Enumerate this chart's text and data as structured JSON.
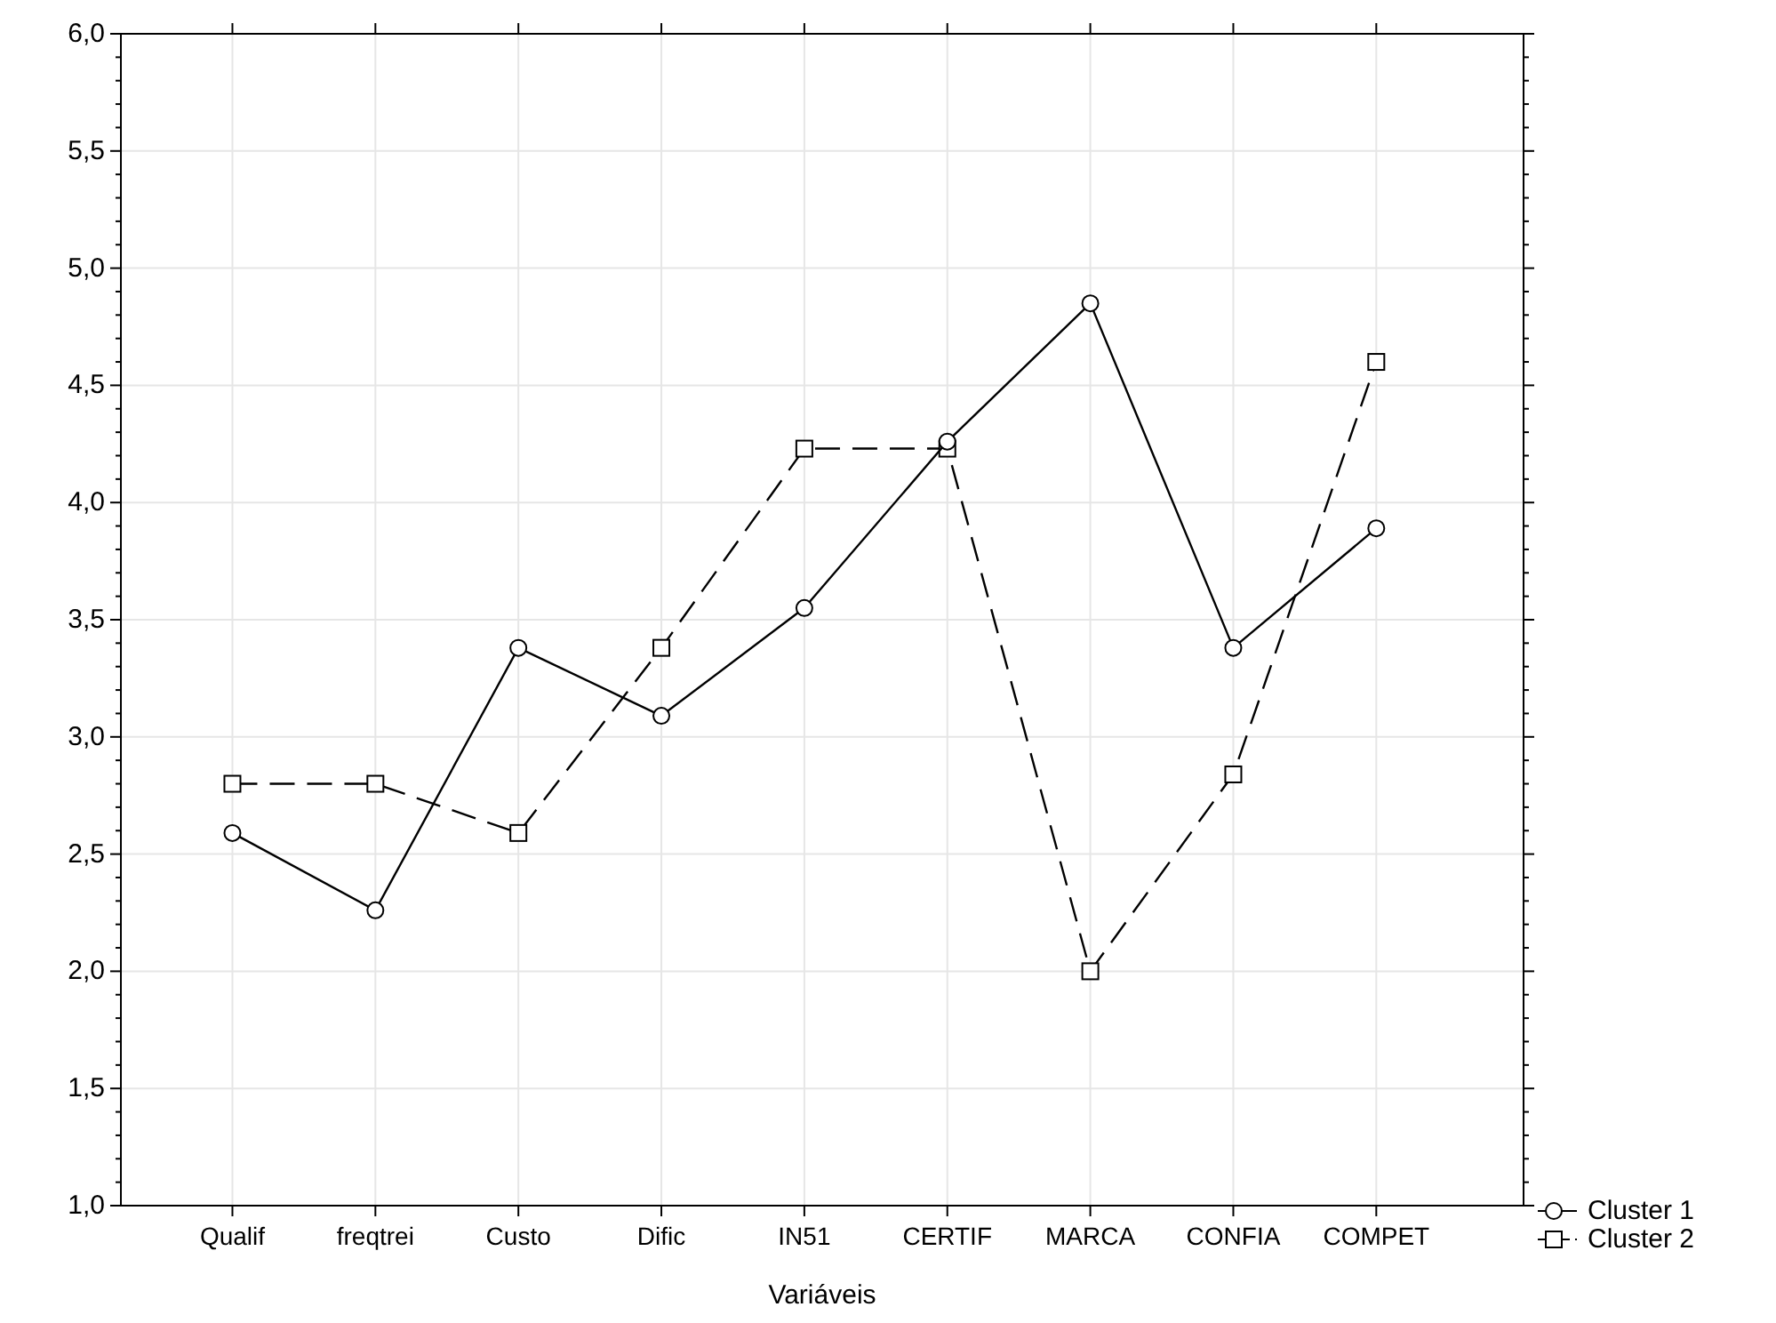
{
  "chart_data": {
    "type": "line",
    "xlabel": "Variáveis",
    "categories": [
      "Qualif",
      "freqtrei",
      "Custo",
      "Dific",
      "IN51",
      "CERTIF",
      "MARCA",
      "CONFIA",
      "COMPET"
    ],
    "ylim": [
      1,
      6
    ],
    "yticks": [
      {
        "value": 1,
        "label": "1,0"
      },
      {
        "value": 1.5,
        "label": "1,5"
      },
      {
        "value": 2,
        "label": "2,0"
      },
      {
        "value": 2.5,
        "label": "2,5"
      },
      {
        "value": 3,
        "label": "3,0"
      },
      {
        "value": 3.5,
        "label": "3,5"
      },
      {
        "value": 4,
        "label": "4,0"
      },
      {
        "value": 4.5,
        "label": "4,5"
      },
      {
        "value": 5,
        "label": "5,0"
      },
      {
        "value": 5.5,
        "label": "5,5"
      },
      {
        "value": 6,
        "label": "6,0"
      }
    ],
    "grid": true,
    "legend": "bottom right",
    "series": [
      {
        "name": "Cluster  1",
        "color": "#000000",
        "marker": "circle",
        "line_style": "solid",
        "values": [
          2.59,
          2.26,
          3.38,
          3.09,
          3.55,
          4.26,
          4.85,
          3.38,
          3.89
        ]
      },
      {
        "name": "Cluster  2",
        "color": "#000000",
        "marker": "square",
        "line_style": "dashed",
        "values": [
          2.8,
          2.8,
          2.59,
          3.38,
          4.23,
          4.23,
          2.0,
          2.84,
          4.6
        ]
      }
    ]
  }
}
